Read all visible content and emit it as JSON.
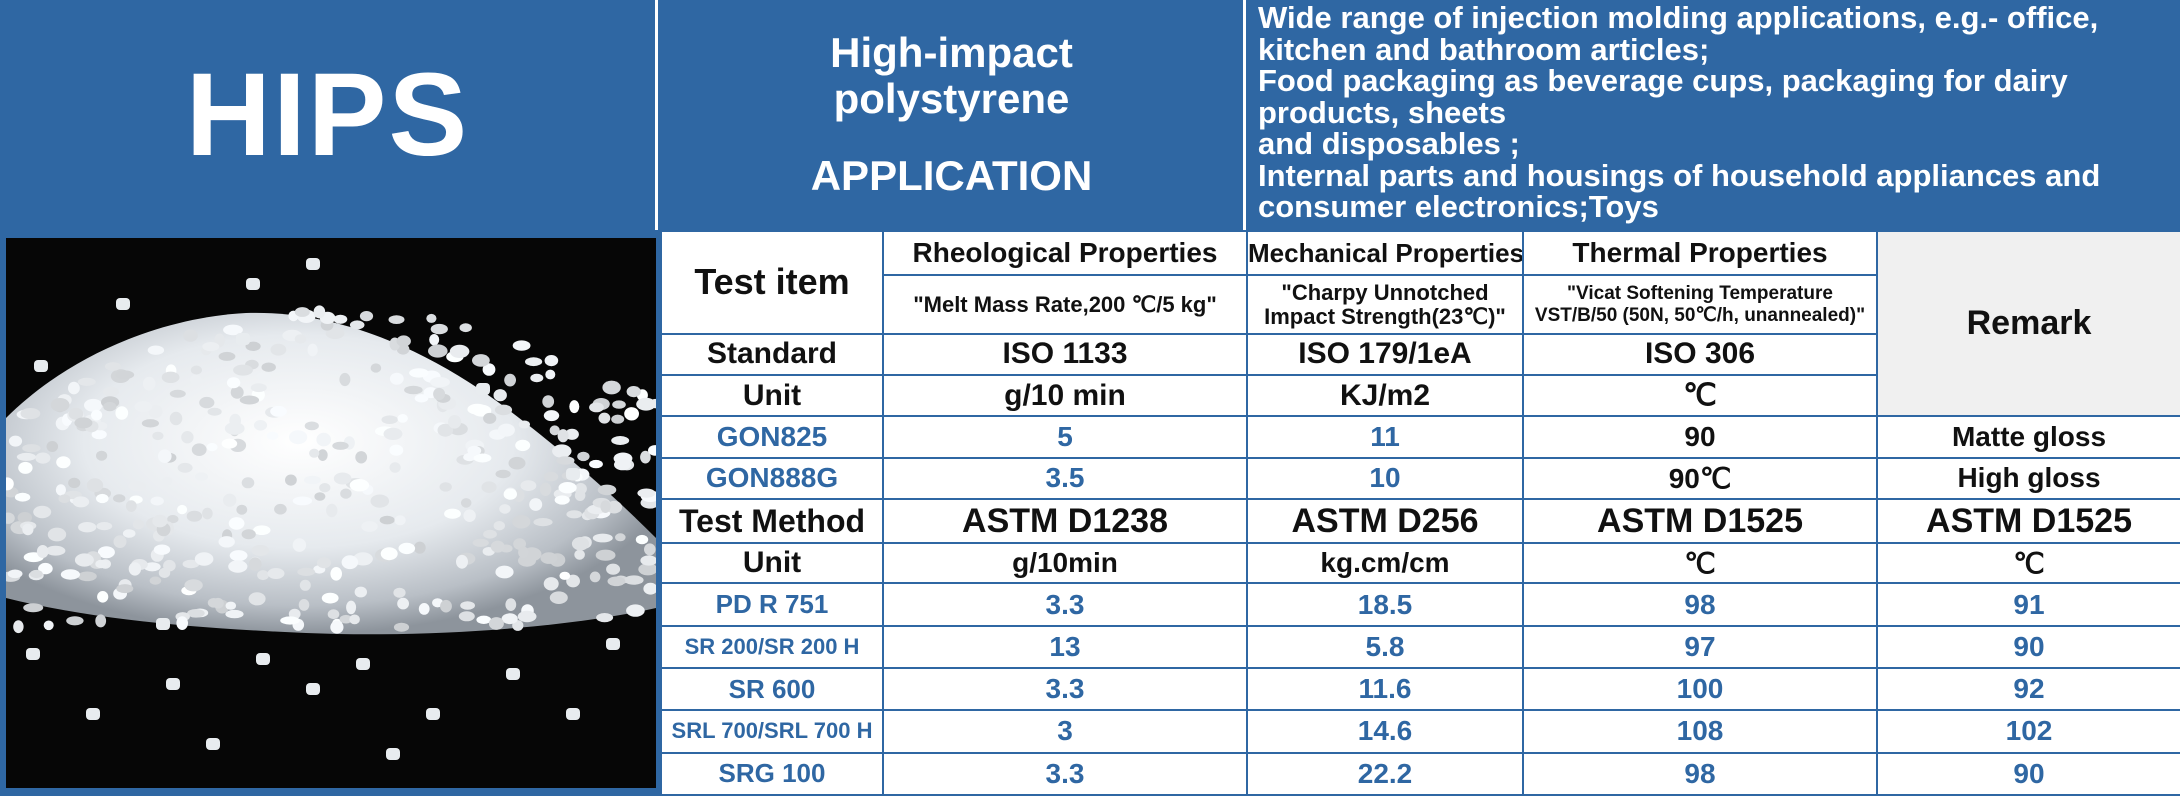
{
  "title": "HIPS",
  "header": {
    "name_line1": "High-impact",
    "name_line2": "polystyrene",
    "application_label": "APPLICATION",
    "application_lines": [
      "Wide range of injection molding applications, e.g.- office,",
      "kitchen and bathroom articles;",
      "Food packaging as beverage cups, packaging for dairy",
      "products, sheets",
      "and disposables ;",
      "Internal parts and housings of household appliances and",
      "consumer electronics;Toys"
    ]
  },
  "table": {
    "test_item_label": "Test item",
    "remark_label": "Remark",
    "columns": [
      {
        "group": "Rheological Properties",
        "desc": "\"Melt Mass Rate,200 ℃/5 kg\""
      },
      {
        "group": "Mechanical Properties",
        "desc": "\"Charpy Unnotched Impact Strength(23℃)\""
      },
      {
        "group": "Thermal Properties",
        "desc": "\"Vicat Softening Temperature VST/B/50 (50N, 50℃/h, unannealed)\""
      }
    ],
    "standard": {
      "label": "Standard",
      "values": [
        "ISO 1133",
        "ISO 179/1eA",
        "ISO 306"
      ]
    },
    "unit1": {
      "label": "Unit",
      "values": [
        "g/10 min",
        "KJ/m2",
        "℃"
      ]
    },
    "grades1": [
      {
        "name": "GON825",
        "values": [
          "5",
          "11",
          "90"
        ],
        "remark": "Matte gloss"
      },
      {
        "name": "GON888G",
        "values": [
          "3.5",
          "10",
          "90℃"
        ],
        "remark": "High gloss"
      }
    ],
    "test_method": {
      "label": "Test Method",
      "values": [
        "ASTM D1238",
        "ASTM D256",
        "ASTM D1525",
        "ASTM D1525"
      ]
    },
    "unit2": {
      "label": "Unit",
      "values": [
        "g/10min",
        "kg.cm/cm",
        "℃",
        "℃"
      ]
    },
    "grades2": [
      {
        "name": "PD R 751",
        "values": [
          "3.3",
          "18.5",
          "98",
          "91"
        ]
      },
      {
        "name": "SR 200/SR 200 H",
        "values": [
          "13",
          "5.8",
          "97",
          "90"
        ]
      },
      {
        "name": "SR 600",
        "values": [
          "3.3",
          "11.6",
          "100",
          "92"
        ]
      },
      {
        "name": "SRL 700/SRL 700 H",
        "values": [
          "3",
          "14.6",
          "108",
          "102"
        ]
      },
      {
        "name": "SRG 100",
        "values": [
          "3.3",
          "22.2",
          "98",
          "90"
        ]
      }
    ]
  },
  "colors": {
    "brand_blue": "#2f67a3",
    "header_text": "#ffffff",
    "value_blue": "#2f67a3"
  }
}
